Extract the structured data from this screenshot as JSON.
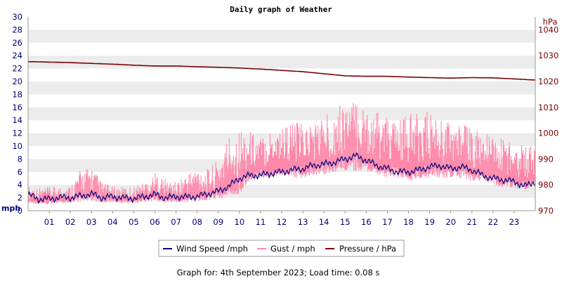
{
  "chart_data": {
    "type": "line",
    "title": "Daily graph of Weather",
    "left_axis": {
      "unit": "mph",
      "ylim": [
        0,
        30
      ],
      "ticks": [
        "0",
        "2",
        "4",
        "6",
        "8",
        "10",
        "12",
        "14",
        "16",
        "18",
        "20",
        "22",
        "24",
        "26",
        "28",
        "30"
      ]
    },
    "right_axis": {
      "unit": "hPa",
      "ylim": [
        970,
        1045
      ],
      "ticks": [
        "970",
        "980",
        "990",
        "1000",
        "1010",
        "1020",
        "1030",
        "1040"
      ]
    },
    "x_axis": {
      "xlim": [
        0,
        24
      ],
      "tick_labels": [
        "01",
        "02",
        "03",
        "04",
        "05",
        "06",
        "07",
        "08",
        "09",
        "10",
        "11",
        "12",
        "13",
        "14",
        "15",
        "16",
        "17",
        "18",
        "19",
        "20",
        "21",
        "22",
        "23"
      ]
    },
    "grid": "horizontal bands",
    "legend_position": "bottom",
    "colors": {
      "wind": "#00007a",
      "gust": "#ff88aa",
      "pressure": "#7a0000",
      "band": "#ececec"
    },
    "series": [
      {
        "name": "Wind Speed /mph",
        "axis": "left",
        "color": "#00007a",
        "x": [
          0,
          0.5,
          1,
          1.5,
          2,
          2.5,
          3,
          3.5,
          4,
          4.5,
          5,
          5.5,
          6,
          6.5,
          7,
          7.5,
          8,
          8.5,
          9,
          9.5,
          10,
          10.5,
          11,
          11.5,
          12,
          12.5,
          13,
          13.5,
          14,
          14.5,
          15,
          15.5,
          16,
          16.5,
          17,
          17.5,
          18,
          18.5,
          19,
          19.5,
          20,
          20.5,
          21,
          21.5,
          22,
          22.5,
          23,
          23.5,
          23.9
        ],
        "values": [
          2.5,
          1.8,
          1.8,
          2.1,
          2.0,
          2.3,
          2.6,
          2.0,
          2.2,
          2.0,
          1.9,
          2.2,
          2.5,
          2.0,
          2.2,
          2.1,
          2.2,
          2.6,
          3.0,
          3.8,
          5.0,
          5.5,
          5.5,
          5.8,
          6.0,
          6.3,
          6.5,
          7.0,
          7.2,
          7.5,
          8.0,
          8.5,
          7.8,
          7.0,
          6.5,
          6.0,
          6.0,
          6.3,
          6.8,
          7.0,
          6.5,
          6.8,
          6.3,
          5.5,
          5.0,
          4.8,
          4.5,
          3.8,
          4.4
        ]
      },
      {
        "name": "Gust / mph",
        "axis": "left",
        "color": "#ff88aa",
        "x": [
          0,
          0.5,
          1,
          1.5,
          2,
          2.5,
          3,
          3.5,
          4,
          4.5,
          5,
          5.5,
          6,
          6.5,
          7,
          7.5,
          8,
          8.5,
          9,
          9.5,
          10,
          10.5,
          11,
          11.5,
          12,
          12.5,
          13,
          13.5,
          14,
          14.5,
          15,
          15.5,
          16,
          16.5,
          17,
          17.5,
          18,
          18.5,
          19,
          19.5,
          20,
          20.5,
          21,
          21.5,
          22,
          22.5,
          23,
          23.5,
          23.9
        ],
        "low": [
          1.2,
          1.0,
          1.0,
          1.2,
          1.2,
          1.4,
          1.5,
          1.2,
          1.3,
          1.2,
          1.2,
          1.3,
          1.5,
          1.2,
          1.3,
          1.3,
          1.3,
          1.5,
          1.8,
          2.2,
          2.5,
          4.5,
          5.0,
          5.0,
          5.5,
          5.0,
          5.0,
          5.5,
          5.5,
          6.0,
          6.0,
          6.0,
          6.0,
          5.5,
          5.0,
          5.0,
          4.5,
          5.0,
          5.0,
          5.0,
          5.0,
          5.0,
          4.5,
          4.5,
          4.0,
          3.5,
          3.5,
          3.0,
          4.0
        ],
        "high": [
          3.8,
          3.7,
          3.7,
          3.8,
          4.0,
          6.5,
          7.0,
          4.5,
          3.8,
          3.7,
          3.8,
          4.5,
          6.0,
          5.0,
          4.5,
          6.0,
          7.0,
          6.5,
          8.0,
          12.0,
          13.0,
          12.5,
          11.5,
          13.0,
          13.5,
          14.0,
          13.5,
          14.0,
          15.0,
          15.5,
          17.5,
          17.0,
          16.5,
          15.5,
          14.5,
          14.0,
          15.0,
          15.0,
          15.5,
          14.5,
          14.0,
          13.5,
          13.0,
          12.5,
          11.5,
          11.5,
          11.0,
          10.5,
          10.0
        ]
      },
      {
        "name": "Pressure / hPa",
        "axis": "right",
        "color": "#7a0000",
        "x": [
          0,
          1,
          2,
          3,
          4,
          5,
          6,
          7,
          8,
          9,
          10,
          11,
          12,
          13,
          14,
          15,
          16,
          17,
          18,
          19,
          20,
          21,
          22,
          23,
          23.9
        ],
        "values": [
          1027.7,
          1027.5,
          1027.3,
          1027.0,
          1026.7,
          1026.3,
          1026.0,
          1026.0,
          1025.7,
          1025.5,
          1025.2,
          1024.8,
          1024.3,
          1023.8,
          1023.0,
          1022.2,
          1022.0,
          1022.0,
          1021.7,
          1021.5,
          1021.3,
          1021.5,
          1021.4,
          1021.0,
          1020.6
        ]
      }
    ]
  },
  "footer": {
    "text": "Graph for: 4th September 2023; Load time: 0.08 s"
  }
}
